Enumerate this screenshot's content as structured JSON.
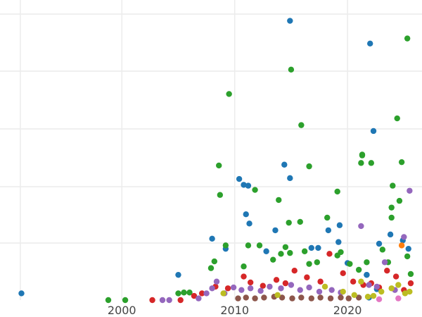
{
  "chart_data": {
    "type": "scatter",
    "title": "",
    "xlabel": "",
    "ylabel": "",
    "xlim": [
      1989.2,
      2026.6
    ],
    "xticks": [
      2000,
      2010,
      2020
    ],
    "x_tick_labels": [
      "2000",
      "2010",
      "2020"
    ],
    "grid": true,
    "legend": "none",
    "series": [
      {
        "color": "#1f77b4",
        "points": [
          [
            1991.1,
            8
          ],
          [
            2005.0,
            30
          ],
          [
            2008.0,
            73
          ],
          [
            2009.2,
            61
          ],
          [
            2010.4,
            144
          ],
          [
            2010.8,
            137
          ],
          [
            2011.2,
            136
          ],
          [
            2011.0,
            102
          ],
          [
            2011.3,
            91
          ],
          [
            2012.8,
            58
          ],
          [
            2013.6,
            83
          ],
          [
            2014.4,
            161
          ],
          [
            2014.9,
            145
          ],
          [
            2014.9,
            332
          ],
          [
            2016.8,
            62
          ],
          [
            2017.4,
            62
          ],
          [
            2018.3,
            83
          ],
          [
            2019.2,
            69
          ],
          [
            2019.3,
            89
          ],
          [
            2020.0,
            44
          ],
          [
            2021.7,
            30
          ],
          [
            2021.7,
            30
          ],
          [
            2022.0,
            305
          ],
          [
            2022.3,
            201
          ],
          [
            2022.8,
            67
          ],
          [
            2023.8,
            78
          ],
          [
            2024.9,
            71
          ],
          [
            2025.4,
            61
          ],
          [
            2021.9,
            3
          ],
          [
            2022.6,
            13
          ]
        ]
      },
      {
        "color": "#2ca02c",
        "points": [
          [
            1998.8,
            0
          ],
          [
            2000.3,
            0
          ],
          [
            2005.0,
            8
          ],
          [
            2005.5,
            9
          ],
          [
            2006.0,
            9
          ],
          [
            2007.9,
            38
          ],
          [
            2008.2,
            46
          ],
          [
            2008.6,
            160
          ],
          [
            2008.7,
            125
          ],
          [
            2009.2,
            65
          ],
          [
            2009.5,
            245
          ],
          [
            2010.8,
            40
          ],
          [
            2011.2,
            65
          ],
          [
            2011.8,
            131
          ],
          [
            2012.2,
            65
          ],
          [
            2013.4,
            48
          ],
          [
            2013.9,
            119
          ],
          [
            2014.1,
            55
          ],
          [
            2014.5,
            63
          ],
          [
            2014.8,
            92
          ],
          [
            2014.9,
            56
          ],
          [
            2015.0,
            274
          ],
          [
            2015.8,
            93
          ],
          [
            2015.9,
            208
          ],
          [
            2016.2,
            58
          ],
          [
            2016.6,
            43
          ],
          [
            2016.6,
            159
          ],
          [
            2017.3,
            45
          ],
          [
            2018.2,
            98
          ],
          [
            2019.1,
            129
          ],
          [
            2019.1,
            53
          ],
          [
            2019.4,
            57
          ],
          [
            2020.2,
            43
          ],
          [
            2021.0,
            36
          ],
          [
            2021.2,
            163
          ],
          [
            2021.3,
            172
          ],
          [
            2021.3,
            173
          ],
          [
            2021.7,
            45
          ],
          [
            2022.1,
            163
          ],
          [
            2023.1,
            60
          ],
          [
            2023.6,
            45
          ],
          [
            2023.9,
            110
          ],
          [
            2023.9,
            98
          ],
          [
            2024.0,
            136
          ],
          [
            2024.4,
            216
          ],
          [
            2024.6,
            118
          ],
          [
            2024.8,
            164
          ],
          [
            2025.3,
            311
          ],
          [
            2025.6,
            31
          ],
          [
            2025.3,
            52
          ]
        ]
      },
      {
        "color": "#d62728",
        "points": [
          [
            2002.7,
            0
          ],
          [
            2005.2,
            0
          ],
          [
            2006.4,
            5
          ],
          [
            2007.1,
            8
          ],
          [
            2008.3,
            16
          ],
          [
            2009.4,
            14
          ],
          [
            2010.8,
            28
          ],
          [
            2011.4,
            21
          ],
          [
            2012.5,
            17
          ],
          [
            2013.7,
            24
          ],
          [
            2014.5,
            20
          ],
          [
            2015.3,
            35
          ],
          [
            2016.4,
            27
          ],
          [
            2017.6,
            22
          ],
          [
            2018.4,
            55
          ],
          [
            2019.6,
            32
          ],
          [
            2020.5,
            22
          ],
          [
            2021.4,
            18
          ],
          [
            2022.1,
            20
          ],
          [
            2022.8,
            15
          ],
          [
            2023.5,
            35
          ],
          [
            2024.3,
            28
          ],
          [
            2025.0,
            12
          ],
          [
            2025.6,
            20
          ]
        ]
      },
      {
        "color": "#9467bd",
        "points": [
          [
            2003.6,
            0
          ],
          [
            2004.2,
            0
          ],
          [
            2006.8,
            2
          ],
          [
            2007.5,
            8
          ],
          [
            2008.0,
            14
          ],
          [
            2008.4,
            22
          ],
          [
            2009.1,
            8
          ],
          [
            2009.9,
            15
          ],
          [
            2010.6,
            12
          ],
          [
            2011.4,
            14
          ],
          [
            2012.3,
            11
          ],
          [
            2013.1,
            16
          ],
          [
            2014.1,
            14
          ],
          [
            2015.0,
            18
          ],
          [
            2015.8,
            12
          ],
          [
            2016.6,
            15
          ],
          [
            2017.5,
            10
          ],
          [
            2018.6,
            12
          ],
          [
            2019.4,
            9
          ],
          [
            2021.2,
            88
          ],
          [
            2021.9,
            18
          ],
          [
            2022.6,
            16
          ],
          [
            2023.3,
            45
          ],
          [
            2024.2,
            12
          ],
          [
            2025.0,
            75
          ],
          [
            2025.5,
            130
          ]
        ]
      },
      {
        "color": "#8c564b",
        "points": [
          [
            2010.3,
            2
          ],
          [
            2011.0,
            3
          ],
          [
            2011.8,
            2
          ],
          [
            2012.6,
            3
          ],
          [
            2013.5,
            4
          ],
          [
            2014.2,
            3
          ],
          [
            2015.1,
            2
          ],
          [
            2015.9,
            3
          ],
          [
            2016.8,
            2
          ],
          [
            2017.6,
            3
          ],
          [
            2018.5,
            2
          ],
          [
            2019.4,
            3
          ],
          [
            2020.1,
            2
          ],
          [
            2021.0,
            3
          ]
        ]
      },
      {
        "color": "#bcbd22",
        "points": [
          [
            2009.0,
            8
          ],
          [
            2013.8,
            6
          ],
          [
            2018.0,
            16
          ],
          [
            2019.6,
            10
          ],
          [
            2020.6,
            6
          ],
          [
            2021.2,
            22
          ],
          [
            2021.8,
            4
          ],
          [
            2022.3,
            5
          ],
          [
            2023.0,
            10
          ],
          [
            2023.9,
            14
          ],
          [
            2024.5,
            18
          ],
          [
            2025.1,
            8
          ],
          [
            2025.5,
            10
          ]
        ]
      },
      {
        "color": "#ff7f0e",
        "points": [
          [
            2024.8,
            65
          ]
        ]
      },
      {
        "color": "#e377c2",
        "points": [
          [
            2022.8,
            1
          ],
          [
            2024.5,
            2
          ]
        ]
      }
    ]
  }
}
